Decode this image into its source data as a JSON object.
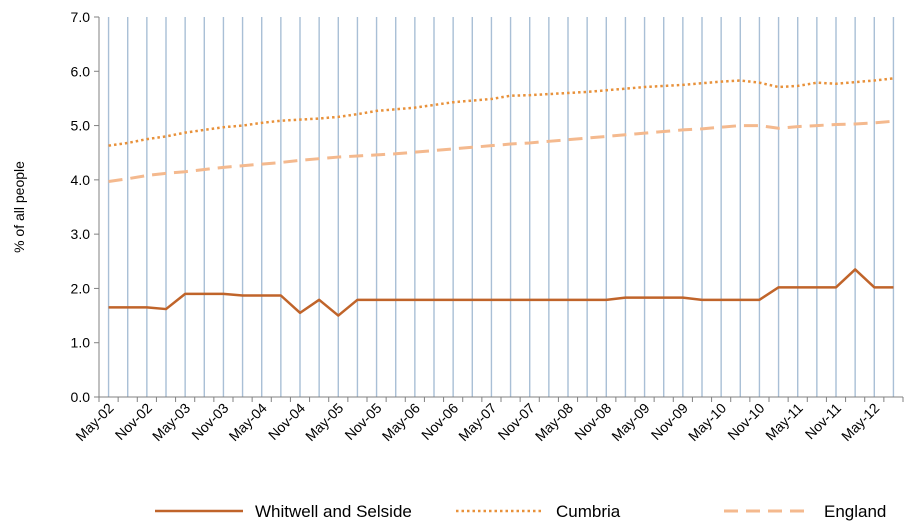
{
  "chart_data": {
    "type": "line",
    "title": "",
    "xlabel": "",
    "ylabel": "% of all people",
    "ylim": [
      0,
      7
    ],
    "yticks": [
      "0.0",
      "1.0",
      "2.0",
      "3.0",
      "4.0",
      "5.0",
      "6.0",
      "7.0"
    ],
    "grid": "vertical lines at each quarter",
    "legend_position": "bottom",
    "x": [
      "May-02",
      "Aug-02",
      "Nov-02",
      "Feb-03",
      "May-03",
      "Aug-03",
      "Nov-03",
      "Feb-04",
      "May-04",
      "Aug-04",
      "Nov-04",
      "Feb-05",
      "May-05",
      "Aug-05",
      "Nov-05",
      "Feb-06",
      "May-06",
      "Aug-06",
      "Nov-06",
      "Feb-07",
      "May-07",
      "Aug-07",
      "Nov-07",
      "Feb-08",
      "May-08",
      "Aug-08",
      "Nov-08",
      "Feb-09",
      "May-09",
      "Aug-09",
      "Nov-09",
      "Feb-10",
      "May-10",
      "Aug-10",
      "Nov-10",
      "Feb-11",
      "May-11",
      "Aug-11",
      "Nov-11",
      "Feb-12",
      "May-12",
      "Aug-12"
    ],
    "xtick_labels": [
      "May-02",
      "Nov-02",
      "May-03",
      "Nov-03",
      "May-04",
      "Nov-04",
      "May-05",
      "Nov-05",
      "May-06",
      "Nov-06",
      "May-07",
      "Nov-07",
      "May-08",
      "Nov-08",
      "May-09",
      "Nov-09",
      "May-10",
      "Nov-10",
      "May-11",
      "Nov-11",
      "May-12"
    ],
    "series": [
      {
        "name": "Whitwell and Selside",
        "style": "solid",
        "color": "#c0642a",
        "values": [
          1.65,
          1.65,
          1.65,
          1.62,
          1.9,
          1.9,
          1.9,
          1.87,
          1.87,
          1.87,
          1.55,
          1.79,
          1.5,
          1.79,
          1.79,
          1.79,
          1.79,
          1.79,
          1.79,
          1.79,
          1.79,
          1.79,
          1.79,
          1.79,
          1.79,
          1.79,
          1.79,
          1.83,
          1.83,
          1.83,
          1.83,
          1.79,
          1.79,
          1.79,
          1.79,
          2.02,
          2.02,
          2.02,
          2.02,
          2.35,
          2.02,
          2.02
        ]
      },
      {
        "name": "Cumbria",
        "style": "dotted",
        "color": "#e8913a",
        "values": [
          4.63,
          4.68,
          4.75,
          4.8,
          4.87,
          4.92,
          4.97,
          5.0,
          5.05,
          5.09,
          5.11,
          5.13,
          5.16,
          5.21,
          5.27,
          5.3,
          5.33,
          5.38,
          5.43,
          5.46,
          5.49,
          5.55,
          5.56,
          5.58,
          5.6,
          5.62,
          5.65,
          5.68,
          5.71,
          5.73,
          5.75,
          5.78,
          5.81,
          5.83,
          5.79,
          5.71,
          5.73,
          5.79,
          5.77,
          5.8,
          5.83,
          5.87
        ]
      },
      {
        "name": "England",
        "style": "dashed",
        "color": "#f4b98e",
        "values": [
          3.97,
          4.02,
          4.08,
          4.12,
          4.15,
          4.19,
          4.23,
          4.26,
          4.29,
          4.32,
          4.36,
          4.39,
          4.42,
          4.44,
          4.46,
          4.48,
          4.51,
          4.54,
          4.57,
          4.6,
          4.63,
          4.66,
          4.68,
          4.71,
          4.74,
          4.77,
          4.8,
          4.83,
          4.86,
          4.89,
          4.92,
          4.94,
          4.97,
          5.0,
          5.0,
          4.95,
          4.98,
          5.0,
          5.02,
          5.03,
          5.05,
          5.08
        ]
      }
    ]
  }
}
